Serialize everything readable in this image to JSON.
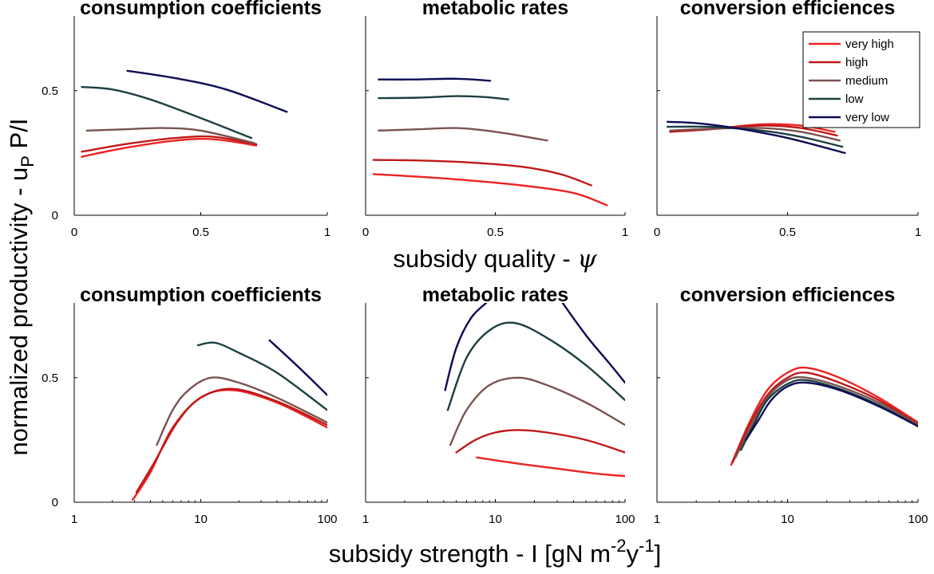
{
  "figure": {
    "ylabel": "normalized productivity - u",
    "ylabel_sub": "P",
    "ylabel_tail": " P/I",
    "xlabel_top": "subsidy quality - ",
    "xlabel_top_symbol": "ψ",
    "xlabel_bottom": "subsidy strength - I [gN m",
    "xlabel_bottom_sup1": "-2",
    "xlabel_bottom_mid": "y",
    "xlabel_bottom_sup2": "-1",
    "xlabel_bottom_end": "]"
  },
  "legend": {
    "items": [
      {
        "label": "very high",
        "color": "#ee2222"
      },
      {
        "label": "high",
        "color": "#c01818"
      },
      {
        "label": "medium",
        "color": "#7a5250"
      },
      {
        "label": "low",
        "color": "#1c3f42"
      },
      {
        "label": "very low",
        "color": "#0c0c55"
      }
    ]
  },
  "chart_data": [
    {
      "type": "line",
      "title": "consumption coefficients",
      "xscale": "linear",
      "xlim": [
        0,
        1
      ],
      "ylim": [
        0,
        0.8
      ],
      "xticks": [
        0,
        0.5,
        1
      ],
      "xtick_labels": [
        "0",
        "0.5",
        "1"
      ],
      "yticks": [
        0,
        0.5
      ],
      "ytick_labels": [
        "0",
        "0.5"
      ],
      "series": [
        {
          "name": "very high",
          "x": [
            0.03,
            0.2,
            0.4,
            0.55,
            0.72
          ],
          "y": [
            0.235,
            0.27,
            0.3,
            0.305,
            0.28
          ]
        },
        {
          "name": "high",
          "x": [
            0.03,
            0.2,
            0.4,
            0.55,
            0.72
          ],
          "y": [
            0.255,
            0.285,
            0.31,
            0.315,
            0.285
          ]
        },
        {
          "name": "medium",
          "x": [
            0.05,
            0.2,
            0.35,
            0.5,
            0.71
          ],
          "y": [
            0.34,
            0.345,
            0.35,
            0.34,
            0.29
          ]
        },
        {
          "name": "low",
          "x": [
            0.03,
            0.15,
            0.3,
            0.5,
            0.7
          ],
          "y": [
            0.515,
            0.505,
            0.465,
            0.39,
            0.31
          ]
        },
        {
          "name": "very low",
          "x": [
            0.21,
            0.4,
            0.6,
            0.84
          ],
          "y": [
            0.58,
            0.55,
            0.505,
            0.415
          ]
        }
      ]
    },
    {
      "type": "line",
      "title": "metabolic rates",
      "xscale": "linear",
      "xlim": [
        0,
        1
      ],
      "ylim": [
        0,
        0.8
      ],
      "xticks": [
        0,
        0.5,
        1
      ],
      "xtick_labels": [
        "0",
        "0.5",
        "1"
      ],
      "yticks": [
        0,
        0.5
      ],
      "ytick_labels": [
        "",
        ""
      ],
      "series": [
        {
          "name": "very high",
          "x": [
            0.03,
            0.2,
            0.4,
            0.6,
            0.8,
            0.93
          ],
          "y": [
            0.165,
            0.155,
            0.14,
            0.12,
            0.09,
            0.04
          ]
        },
        {
          "name": "high",
          "x": [
            0.03,
            0.2,
            0.4,
            0.6,
            0.75,
            0.87
          ],
          "y": [
            0.222,
            0.22,
            0.212,
            0.195,
            0.165,
            0.12
          ]
        },
        {
          "name": "medium",
          "x": [
            0.05,
            0.2,
            0.35,
            0.5,
            0.7
          ],
          "y": [
            0.34,
            0.345,
            0.35,
            0.335,
            0.3
          ]
        },
        {
          "name": "low",
          "x": [
            0.05,
            0.2,
            0.35,
            0.45,
            0.55
          ],
          "y": [
            0.47,
            0.472,
            0.478,
            0.475,
            0.465
          ]
        },
        {
          "name": "very low",
          "x": [
            0.05,
            0.2,
            0.35,
            0.48
          ],
          "y": [
            0.545,
            0.545,
            0.548,
            0.54
          ]
        }
      ]
    },
    {
      "type": "line",
      "title": "conversion efficiences",
      "xscale": "linear",
      "xlim": [
        0,
        1
      ],
      "ylim": [
        0,
        0.8
      ],
      "xticks": [
        0,
        0.5,
        1
      ],
      "xtick_labels": [
        "0",
        "0.5",
        "1"
      ],
      "yticks": [
        0,
        0.5
      ],
      "ytick_labels": [
        "",
        ""
      ],
      "series": [
        {
          "name": "very high",
          "x": [
            0.05,
            0.2,
            0.4,
            0.55,
            0.68
          ],
          "y": [
            0.335,
            0.345,
            0.365,
            0.36,
            0.335
          ]
        },
        {
          "name": "high",
          "x": [
            0.05,
            0.2,
            0.4,
            0.55,
            0.69
          ],
          "y": [
            0.335,
            0.345,
            0.36,
            0.35,
            0.32
          ]
        },
        {
          "name": "medium",
          "x": [
            0.05,
            0.2,
            0.4,
            0.55,
            0.7
          ],
          "y": [
            0.34,
            0.347,
            0.35,
            0.335,
            0.3
          ]
        },
        {
          "name": "low",
          "x": [
            0.04,
            0.2,
            0.4,
            0.55,
            0.71
          ],
          "y": [
            0.355,
            0.355,
            0.34,
            0.315,
            0.275
          ]
        },
        {
          "name": "very low",
          "x": [
            0.04,
            0.15,
            0.3,
            0.5,
            0.72
          ],
          "y": [
            0.375,
            0.37,
            0.35,
            0.31,
            0.25
          ]
        }
      ]
    },
    {
      "type": "line",
      "title": "consumption coefficients",
      "xscale": "log",
      "xlim": [
        1,
        100
      ],
      "ylim": [
        0,
        0.8
      ],
      "xticks": [
        1,
        10,
        100
      ],
      "xtick_labels": [
        "1",
        "10",
        "100"
      ],
      "yticks": [
        0,
        0.5
      ],
      "ytick_labels": [
        "0",
        "0.5"
      ],
      "series": [
        {
          "name": "very high",
          "x": [
            2.9,
            4,
            6,
            10,
            18,
            40,
            100
          ],
          "y": [
            0.01,
            0.12,
            0.3,
            0.42,
            0.45,
            0.4,
            0.3
          ]
        },
        {
          "name": "high",
          "x": [
            3.1,
            4.3,
            6.5,
            10,
            18,
            40,
            100
          ],
          "y": [
            0.04,
            0.16,
            0.32,
            0.42,
            0.455,
            0.405,
            0.31
          ]
        },
        {
          "name": "medium",
          "x": [
            4.5,
            6,
            8,
            12,
            20,
            40,
            100
          ],
          "y": [
            0.23,
            0.37,
            0.45,
            0.5,
            0.48,
            0.42,
            0.32
          ]
        },
        {
          "name": "low",
          "x": [
            9.5,
            13,
            20,
            40,
            100
          ],
          "y": [
            0.63,
            0.64,
            0.6,
            0.52,
            0.37
          ]
        },
        {
          "name": "very low",
          "x": [
            35,
            60,
            100
          ],
          "y": [
            0.65,
            0.54,
            0.43
          ]
        }
      ]
    },
    {
      "type": "line",
      "title": "metabolic rates",
      "xscale": "log",
      "xlim": [
        1,
        100
      ],
      "ylim": [
        0,
        0.8
      ],
      "xticks": [
        1,
        10,
        100
      ],
      "xtick_labels": [
        "1",
        "10",
        "100"
      ],
      "yticks": [
        0,
        0.5
      ],
      "ytick_labels": [
        "",
        ""
      ],
      "series": [
        {
          "name": "very high",
          "x": [
            7.2,
            15,
            30,
            60,
            100
          ],
          "y": [
            0.18,
            0.155,
            0.135,
            0.115,
            0.105
          ]
        },
        {
          "name": "high",
          "x": [
            5,
            7,
            10,
            15,
            25,
            50,
            100
          ],
          "y": [
            0.2,
            0.25,
            0.28,
            0.29,
            0.28,
            0.25,
            0.2
          ]
        },
        {
          "name": "medium",
          "x": [
            4.5,
            6,
            9,
            15,
            25,
            50,
            100
          ],
          "y": [
            0.23,
            0.37,
            0.47,
            0.5,
            0.47,
            0.4,
            0.31
          ]
        },
        {
          "name": "low",
          "x": [
            4.3,
            6,
            9,
            14,
            25,
            50,
            100
          ],
          "y": [
            0.37,
            0.58,
            0.69,
            0.72,
            0.66,
            0.55,
            0.41
          ]
        },
        {
          "name": "very low",
          "x": [
            4.1,
            5,
            6.5,
            8.5
          ],
          "y": [
            0.45,
            0.62,
            0.74,
            0.8
          ]
        },
        {
          "name": "very low",
          "x": [
            33,
            50,
            75,
            100
          ],
          "y": [
            0.8,
            0.67,
            0.56,
            0.48
          ]
        }
      ]
    },
    {
      "type": "line",
      "title": "conversion efficiences",
      "xscale": "log",
      "xlim": [
        1,
        100
      ],
      "ylim": [
        0,
        0.8
      ],
      "xticks": [
        1,
        10,
        100
      ],
      "xtick_labels": [
        "1",
        "10",
        "100"
      ],
      "yticks": [
        0,
        0.5
      ],
      "ytick_labels": [
        "",
        ""
      ],
      "series": [
        {
          "name": "very high",
          "x": [
            3.7,
            5,
            7,
            10,
            14,
            25,
            50,
            100
          ],
          "y": [
            0.15,
            0.31,
            0.45,
            0.52,
            0.54,
            0.5,
            0.42,
            0.32
          ]
        },
        {
          "name": "high",
          "x": [
            3.8,
            5,
            7,
            10,
            14,
            25,
            50,
            100
          ],
          "y": [
            0.16,
            0.3,
            0.43,
            0.5,
            0.52,
            0.48,
            0.41,
            0.315
          ]
        },
        {
          "name": "medium",
          "x": [
            4,
            5.2,
            7,
            10,
            14,
            25,
            50,
            100
          ],
          "y": [
            0.18,
            0.3,
            0.42,
            0.49,
            0.5,
            0.465,
            0.4,
            0.31
          ]
        },
        {
          "name": "low",
          "x": [
            4.4,
            5.5,
            7,
            10,
            14,
            25,
            50,
            100
          ],
          "y": [
            0.21,
            0.31,
            0.41,
            0.475,
            0.49,
            0.455,
            0.39,
            0.305
          ]
        },
        {
          "name": "very low",
          "x": [
            4.8,
            6,
            7.5,
            10,
            14,
            25,
            50,
            100
          ],
          "y": [
            0.25,
            0.33,
            0.41,
            0.465,
            0.48,
            0.45,
            0.385,
            0.305
          ]
        }
      ]
    }
  ]
}
